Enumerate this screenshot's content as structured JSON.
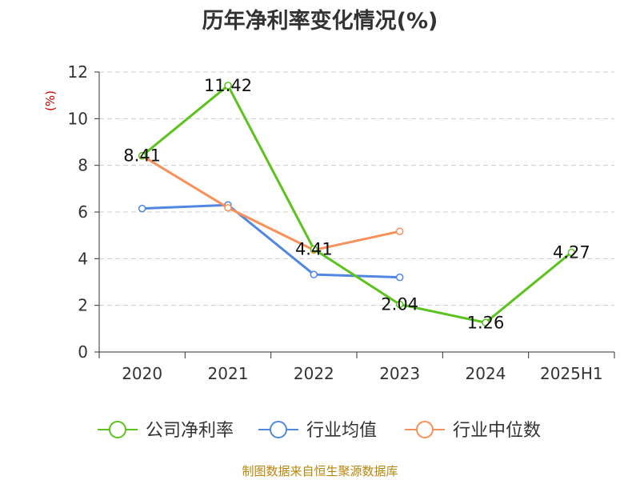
{
  "chart_data": {
    "type": "line",
    "title": "历年净利率变化情况(%)",
    "ylabel": "(%)",
    "xlabel": "",
    "categories": [
      "2020",
      "2021",
      "2022",
      "2023",
      "2024",
      "2025H1"
    ],
    "y_ticks": [
      "0",
      "2",
      "4",
      "6",
      "8",
      "10",
      "12"
    ],
    "ylim": [
      0,
      12
    ],
    "grid": true,
    "legend_position": "bottom",
    "series": [
      {
        "name": "公司净利率",
        "color": "#5cc21d",
        "values": [
          8.41,
          11.42,
          4.41,
          2.04,
          1.26,
          4.27
        ],
        "labels": [
          "8.41",
          "11.42",
          "4.41",
          "2.04",
          "1.26",
          "4.27"
        ]
      },
      {
        "name": "行业均值",
        "color": "#5087e0",
        "values": [
          6.15,
          6.3,
          3.32,
          3.2,
          null,
          null
        ]
      },
      {
        "name": "行业中位数",
        "color": "#f79159",
        "values": [
          8.41,
          6.18,
          4.37,
          5.17,
          null,
          null
        ]
      }
    ],
    "source": "制图数据来自恒生聚源数据库"
  }
}
